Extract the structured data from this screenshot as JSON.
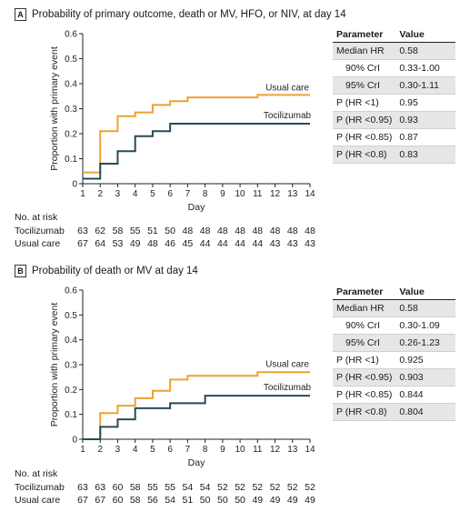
{
  "panels": [
    {
      "letter": "A",
      "title": "Probability of primary outcome, death or MV, HFO, or NIV, at day 14",
      "chart_data": {
        "type": "line",
        "step": true,
        "ylabel": "Proportion with primary event",
        "xlabel": "Day",
        "xlim": [
          1,
          14
        ],
        "ylim": [
          0,
          0.6
        ],
        "x_ticks": [
          1,
          2,
          3,
          4,
          5,
          6,
          7,
          8,
          9,
          10,
          11,
          12,
          13,
          14
        ],
        "y_ticks": [
          "0",
          "0.1",
          "0.2",
          "0.3",
          "0.4",
          "0.5",
          "0.6"
        ],
        "series": [
          {
            "name": "Usual care",
            "color": "#f0a030",
            "x": [
              1,
              2,
              3,
              4,
              5,
              6,
              7,
              11,
              14
            ],
            "y": [
              0.045,
              0.21,
              0.27,
              0.285,
              0.315,
              0.33,
              0.345,
              0.355,
              0.355
            ]
          },
          {
            "name": "Tocilizumab",
            "color": "#254b57",
            "x": [
              1,
              2,
              3,
              4,
              5,
              6,
              14
            ],
            "y": [
              0.02,
              0.08,
              0.13,
              0.19,
              0.21,
              0.24,
              0.24
            ]
          }
        ],
        "annotations": [
          {
            "text": "Usual care",
            "x": 12.7,
            "y": 0.372
          },
          {
            "text": "Tocilizumab",
            "x": 12.7,
            "y": 0.262
          }
        ]
      },
      "table": {
        "headers": [
          "Parameter",
          "Value"
        ],
        "rows": [
          {
            "param": "Median HR",
            "value": "0.58"
          },
          {
            "param": "90% CrI",
            "value": "0.33-1.00"
          },
          {
            "param": "95% CrI",
            "value": "0.30-1.11"
          },
          {
            "param": "P (HR <1)",
            "value": "0.95"
          },
          {
            "param": "P (HR <0.95)",
            "value": "0.93"
          },
          {
            "param": "P (HR <0.85)",
            "value": "0.87"
          },
          {
            "param": "P (HR <0.8)",
            "value": "0.83"
          }
        ]
      },
      "risk": {
        "title": "No. at risk",
        "rows": [
          {
            "label": "Tocilizumab",
            "values": [
              "63",
              "62",
              "58",
              "55",
              "51",
              "50",
              "48",
              "48",
              "48",
              "48",
              "48",
              "48",
              "48",
              "48"
            ]
          },
          {
            "label": "Usual care",
            "values": [
              "67",
              "64",
              "53",
              "49",
              "48",
              "46",
              "45",
              "44",
              "44",
              "44",
              "44",
              "43",
              "43",
              "43"
            ]
          }
        ]
      }
    },
    {
      "letter": "B",
      "title": "Probability of death or MV at day 14",
      "chart_data": {
        "type": "line",
        "step": true,
        "ylabel": "Proportion with primary event",
        "xlabel": "Day",
        "xlim": [
          1,
          14
        ],
        "ylim": [
          0,
          0.6
        ],
        "x_ticks": [
          1,
          2,
          3,
          4,
          5,
          6,
          7,
          8,
          9,
          10,
          11,
          12,
          13,
          14
        ],
        "y_ticks": [
          "0",
          "0.1",
          "0.2",
          "0.3",
          "0.4",
          "0.5",
          "0.6"
        ],
        "series": [
          {
            "name": "Usual care",
            "color": "#f0a030",
            "x": [
              1,
              2,
              3,
              4,
              5,
              6,
              7,
              11,
              14
            ],
            "y": [
              0,
              0.105,
              0.135,
              0.165,
              0.195,
              0.24,
              0.255,
              0.27,
              0.27
            ]
          },
          {
            "name": "Tocilizumab",
            "color": "#254b57",
            "x": [
              1,
              2,
              3,
              4,
              6,
              8,
              14
            ],
            "y": [
              0,
              0.05,
              0.08,
              0.125,
              0.145,
              0.175,
              0.175
            ]
          }
        ],
        "annotations": [
          {
            "text": "Usual care",
            "x": 12.7,
            "y": 0.29
          },
          {
            "text": "Tocilizumab",
            "x": 12.7,
            "y": 0.197
          }
        ]
      },
      "table": {
        "headers": [
          "Parameter",
          "Value"
        ],
        "rows": [
          {
            "param": "Median HR",
            "value": "0.58"
          },
          {
            "param": "90% CrI",
            "value": "0.30-1.09"
          },
          {
            "param": "95% CrI",
            "value": "0.26-1.23"
          },
          {
            "param": "P (HR <1)",
            "value": "0.925"
          },
          {
            "param": "P (HR <0.95)",
            "value": "0.903"
          },
          {
            "param": "P (HR <0.85)",
            "value": "0.844"
          },
          {
            "param": "P (HR <0.8)",
            "value": "0.804"
          }
        ]
      },
      "risk": {
        "title": "No. at risk",
        "rows": [
          {
            "label": "Tocilizumab",
            "values": [
              "63",
              "63",
              "60",
              "58",
              "55",
              "55",
              "54",
              "54",
              "52",
              "52",
              "52",
              "52",
              "52",
              "52"
            ]
          },
          {
            "label": "Usual care",
            "values": [
              "67",
              "67",
              "60",
              "58",
              "56",
              "54",
              "51",
              "50",
              "50",
              "50",
              "49",
              "49",
              "49",
              "49"
            ]
          }
        ]
      }
    }
  ]
}
